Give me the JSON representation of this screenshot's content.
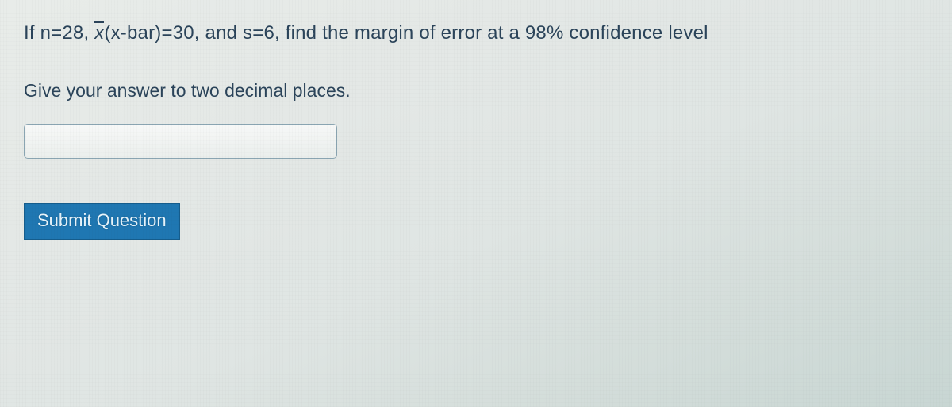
{
  "question": {
    "prefix": "If n=28, ",
    "xbar_symbol": "x",
    "mid": "(x-bar)=30, and s=6, find the margin of error at a 98% confidence level",
    "text_color": "#2b445a"
  },
  "instruction": {
    "text": "Give your answer to two decimal places.",
    "text_color": "#2b445a"
  },
  "answer_input": {
    "value": "",
    "placeholder": "",
    "border_color": "#8aa5b2"
  },
  "submit_button": {
    "label": "Submit Question",
    "bg_color": "#1f77b2",
    "text_color": "#e7f4fb",
    "border_color": "#155d8d"
  }
}
